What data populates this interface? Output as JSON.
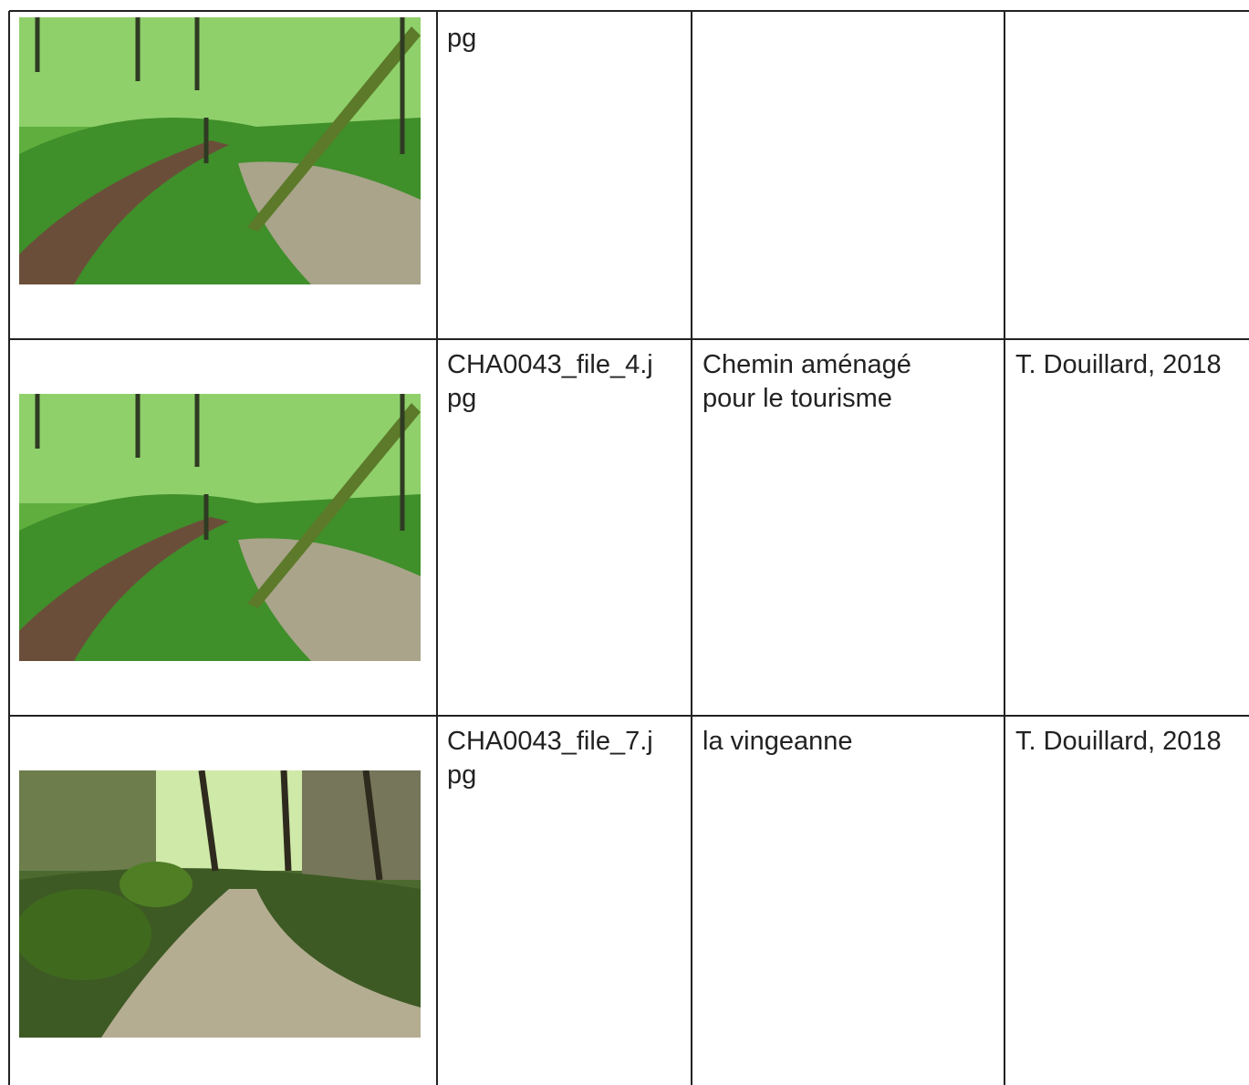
{
  "table": {
    "rows": [
      {
        "filename_lines": [
          "pg"
        ]
      },
      {
        "filename_lines": [
          "CHA0043_file_4.j",
          "pg"
        ],
        "description_lines": [
          "Chemin aménagé",
          "pour le tourisme"
        ],
        "credit": "T. Douillard, 2018"
      },
      {
        "filename_lines": [
          "CHA0043_file_7.j",
          "pg"
        ],
        "description_lines": [
          "la vingeanne"
        ],
        "credit": "T. Douillard, 2018"
      }
    ]
  }
}
